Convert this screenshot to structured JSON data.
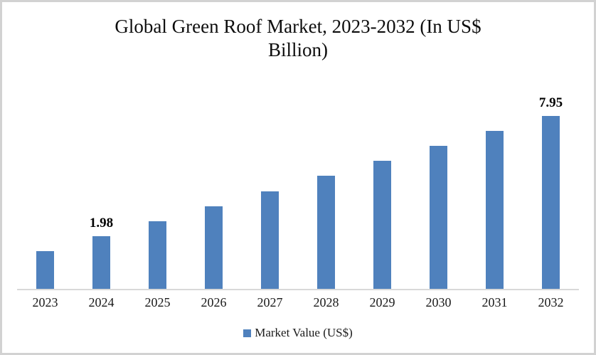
{
  "chart_data": {
    "type": "bar",
    "title": "Global Green Roof Market, 2023-2032 (In US$ Billion)",
    "title_lines": [
      "Global Green Roof Market, 2023-2032 (In US$",
      "Billion)"
    ],
    "categories": [
      "2023",
      "2024",
      "2025",
      "2026",
      "2027",
      "2028",
      "2029",
      "2030",
      "2031",
      "2032"
    ],
    "series": [
      {
        "name": "Market Value (US$)",
        "values": [
          1.23,
          1.98,
          2.73,
          3.47,
          4.22,
          4.97,
          5.71,
          6.46,
          7.2,
          7.95
        ]
      }
    ],
    "data_labels": [
      "",
      "1.98",
      "",
      "",
      "",
      "",
      "",
      "",
      "",
      "7.95"
    ],
    "xlabel": "",
    "ylabel": "",
    "ylim": [
      0,
      8.6
    ],
    "grid": false,
    "y_axis_visible": false,
    "legend": {
      "label": "Market Value (US$)",
      "position": "bottom",
      "marker_color": "#4F81BD"
    },
    "bar_color": "#4F81BD",
    "axis_line_color": "#D9D9D9"
  }
}
